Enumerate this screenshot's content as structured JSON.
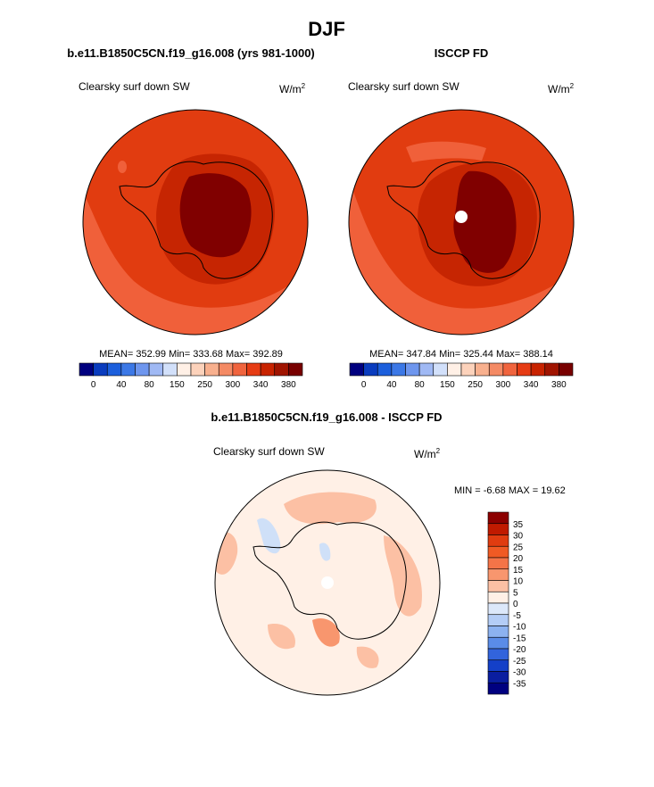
{
  "season_title": "DJF",
  "panels": [
    {
      "id": "model",
      "title": "b.e11.B1850C5CN.f19_g16.008 (yrs 981-1000)",
      "variable": "Clearsky surf down SW",
      "units_base": "W/m",
      "units_exp": "2",
      "stats": "MEAN= 352.99  Min= 333.68  Max= 392.89"
    },
    {
      "id": "obs",
      "title": "ISCCP FD",
      "variable": "Clearsky surf down SW",
      "units_base": "W/m",
      "units_exp": "2",
      "stats": "MEAN= 347.84  Min= 325.44  Max= 388.14"
    }
  ],
  "diff_panel": {
    "title": "b.e11.B1850C5CN.f19_g16.008 - ISCCP FD",
    "variable": "Clearsky surf down SW",
    "units_base": "W/m",
    "units_exp": "2",
    "stats": "MIN =  -6.68 MAX =  19.62"
  },
  "chart_data": [
    {
      "type": "heatmap",
      "projection": "south polar stereographic",
      "title": "b.e11.B1850C5CN.f19_g16.008 (yrs 981-1000)",
      "variable": "Clearsky surf down SW",
      "units": "W/m2",
      "mean": 352.99,
      "min": 333.68,
      "max": 392.89,
      "colorbar_tick_labels": [
        "0",
        "40",
        "80",
        "150",
        "250",
        "300",
        "340",
        "380"
      ],
      "colorbar_colors": [
        "#00007f",
        "#0a3cbe",
        "#1c5fdc",
        "#3c78e6",
        "#6e96ee",
        "#a0b9f4",
        "#d2e0fa",
        "#fff0e6",
        "#fcd2bb",
        "#f8b08e",
        "#f48a64",
        "#f0643e",
        "#e63c14",
        "#c82300",
        "#a01400",
        "#780000"
      ]
    },
    {
      "type": "heatmap",
      "projection": "south polar stereographic",
      "title": "ISCCP FD",
      "variable": "Clearsky surf down SW",
      "units": "W/m2",
      "mean": 347.84,
      "min": 325.44,
      "max": 388.14,
      "colorbar_tick_labels": [
        "0",
        "40",
        "80",
        "150",
        "250",
        "300",
        "340",
        "380"
      ],
      "colorbar_colors": [
        "#00007f",
        "#0a3cbe",
        "#1c5fdc",
        "#3c78e6",
        "#6e96ee",
        "#a0b9f4",
        "#d2e0fa",
        "#fff0e6",
        "#fcd2bb",
        "#f8b08e",
        "#f48a64",
        "#f0643e",
        "#e63c14",
        "#c82300",
        "#a01400",
        "#780000"
      ]
    },
    {
      "type": "heatmap",
      "projection": "south polar stereographic",
      "title": "b.e11.B1850C5CN.f19_g16.008 - ISCCP FD",
      "variable": "Clearsky surf down SW",
      "units": "W/m2",
      "min": -6.68,
      "max": 19.62,
      "colorbar_tick_labels": [
        "35",
        "30",
        "25",
        "20",
        "15",
        "10",
        "5",
        "0",
        "-5",
        "-10",
        "-15",
        "-20",
        "-25",
        "-30",
        "-35"
      ],
      "colorbar_colors": [
        "#8c0000",
        "#c01a00",
        "#e03c10",
        "#f05a24",
        "#f47448",
        "#f8966e",
        "#fcc0a4",
        "#fff0e6",
        "#dce8fa",
        "#b4cdf6",
        "#8cb2f0",
        "#5a8ce8",
        "#3264dc",
        "#1440c8",
        "#0a1ea0",
        "#000080"
      ]
    }
  ]
}
